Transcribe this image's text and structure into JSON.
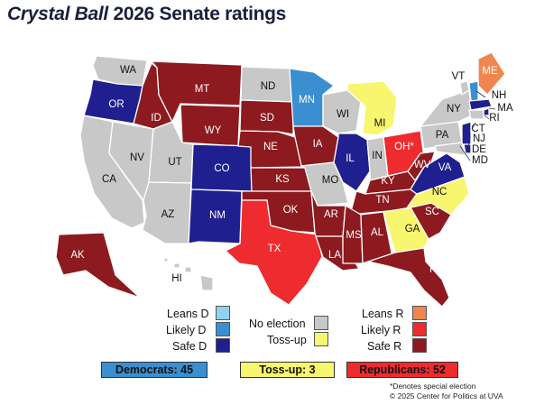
{
  "title": {
    "italic": "Crystal Ball",
    "rest": " 2026 Senate ratings"
  },
  "colors": {
    "leans_d": "#8ed3f2",
    "likely_d": "#3a8fd0",
    "safe_d": "#1f1f8f",
    "no_election": "#c8c8c8",
    "tossup": "#f8f56e",
    "leans_r": "#f0864f",
    "likely_r": "#ee2b2f",
    "safe_r": "#8c1a1f"
  },
  "legend": {
    "leans_d": "Leans D",
    "likely_d": "Likely D",
    "safe_d": "Safe D",
    "no_election": "No election",
    "tossup": "Toss-up",
    "leans_r": "Leans R",
    "likely_r": "Likely R",
    "safe_r": "Safe R"
  },
  "totals": {
    "dem": "Democrats: 45",
    "tossup": "Toss-up: 3",
    "rep": "Republicans: 52"
  },
  "notes": {
    "special": "*Denotes special election",
    "copyright": "© 2025 Center for Politics at UVA"
  },
  "states": [
    {
      "abbr": "WA",
      "rating": "no_election"
    },
    {
      "abbr": "OR",
      "rating": "safe_d"
    },
    {
      "abbr": "CA",
      "rating": "no_election"
    },
    {
      "abbr": "NV",
      "rating": "no_election"
    },
    {
      "abbr": "ID",
      "rating": "safe_r"
    },
    {
      "abbr": "MT",
      "rating": "safe_r"
    },
    {
      "abbr": "WY",
      "rating": "safe_r"
    },
    {
      "abbr": "UT",
      "rating": "no_election"
    },
    {
      "abbr": "AZ",
      "rating": "no_election"
    },
    {
      "abbr": "CO",
      "rating": "safe_d"
    },
    {
      "abbr": "NM",
      "rating": "safe_d"
    },
    {
      "abbr": "ND",
      "rating": "no_election"
    },
    {
      "abbr": "SD",
      "rating": "safe_r"
    },
    {
      "abbr": "NE",
      "rating": "safe_r"
    },
    {
      "abbr": "KS",
      "rating": "safe_r"
    },
    {
      "abbr": "OK",
      "rating": "safe_r"
    },
    {
      "abbr": "TX",
      "rating": "likely_r"
    },
    {
      "abbr": "MN",
      "rating": "likely_d"
    },
    {
      "abbr": "IA",
      "rating": "safe_r"
    },
    {
      "abbr": "MO",
      "rating": "no_election"
    },
    {
      "abbr": "AR",
      "rating": "safe_r"
    },
    {
      "abbr": "LA",
      "rating": "safe_r"
    },
    {
      "abbr": "WI",
      "rating": "no_election"
    },
    {
      "abbr": "IL",
      "rating": "safe_d"
    },
    {
      "abbr": "MI",
      "rating": "tossup"
    },
    {
      "abbr": "IN",
      "rating": "no_election"
    },
    {
      "abbr": "OH*",
      "rating": "likely_r"
    },
    {
      "abbr": "KY",
      "rating": "safe_r"
    },
    {
      "abbr": "TN",
      "rating": "safe_r"
    },
    {
      "abbr": "MS",
      "rating": "safe_r"
    },
    {
      "abbr": "AL",
      "rating": "safe_r"
    },
    {
      "abbr": "GA",
      "rating": "tossup"
    },
    {
      "abbr": "FL*",
      "rating": "safe_r"
    },
    {
      "abbr": "SC",
      "rating": "safe_r"
    },
    {
      "abbr": "NC",
      "rating": "tossup"
    },
    {
      "abbr": "VA",
      "rating": "safe_d"
    },
    {
      "abbr": "WV",
      "rating": "safe_r"
    },
    {
      "abbr": "PA",
      "rating": "no_election"
    },
    {
      "abbr": "NY",
      "rating": "no_election"
    },
    {
      "abbr": "VT",
      "rating": "no_election"
    },
    {
      "abbr": "ME",
      "rating": "leans_r"
    },
    {
      "abbr": "NH",
      "rating": "likely_d"
    },
    {
      "abbr": "MA",
      "rating": "safe_d"
    },
    {
      "abbr": "RI",
      "rating": "safe_d"
    },
    {
      "abbr": "CT",
      "rating": "no_election"
    },
    {
      "abbr": "NJ",
      "rating": "safe_d"
    },
    {
      "abbr": "DE",
      "rating": "safe_d"
    },
    {
      "abbr": "MD",
      "rating": "no_election"
    },
    {
      "abbr": "AK",
      "rating": "safe_r"
    },
    {
      "abbr": "HI",
      "rating": "no_election"
    }
  ]
}
